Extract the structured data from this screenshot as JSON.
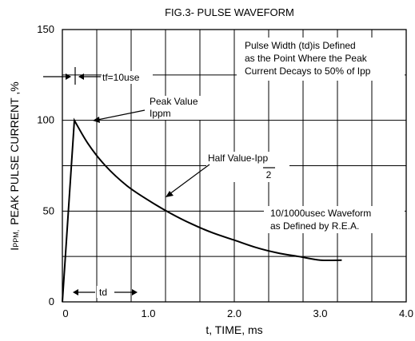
{
  "chart_data": {
    "type": "line",
    "title": "FIG.3- PULSE WAVEFORM",
    "xlabel": "t, TIME, ms",
    "ylabel_prefix": "I",
    "ylabel_subscript": "PPM,",
    "ylabel_rest": "PEAK PULSE CURRENT ,%",
    "xlim": [
      0,
      4.0
    ],
    "ylim": [
      0,
      150
    ],
    "x_ticks": [
      {
        "value": 0,
        "label": "0"
      },
      {
        "value": 1.0,
        "label": "1.0"
      },
      {
        "value": 2.0,
        "label": "2.0"
      },
      {
        "value": 3.0,
        "label": "3.0"
      },
      {
        "value": 4.0,
        "label": "4.0"
      }
    ],
    "y_ticks": [
      {
        "value": 0,
        "label": "0"
      },
      {
        "value": 50,
        "label": "50"
      },
      {
        "value": 100,
        "label": "100"
      },
      {
        "value": 150,
        "label": "150"
      }
    ],
    "grid": true,
    "series": [
      {
        "x": [
          0,
          0.14,
          0.3,
          0.5,
          0.75,
          1.0,
          1.25,
          1.5,
          1.75,
          2.0,
          2.25,
          2.5,
          2.75,
          3.0,
          3.25
        ],
        "y": [
          0,
          100,
          87,
          75,
          64,
          56,
          49,
          43,
          38,
          34,
          30,
          27,
          25,
          23,
          23
        ]
      }
    ],
    "annotations": {
      "tf": "tf=10use",
      "peak_line1": "Peak Value",
      "peak_line2": "Ippm",
      "half_label": "Half Value-Ipp",
      "half_denom": "2",
      "td": "td",
      "pulse_note": [
        "Pulse Width (td)is Defined",
        "as the Point Where the Peak",
        "Current Decays to 50% of Ipp"
      ],
      "waveform_note": [
        "10/1000usec Waveform",
        "as Defined by R.E.A."
      ]
    }
  }
}
